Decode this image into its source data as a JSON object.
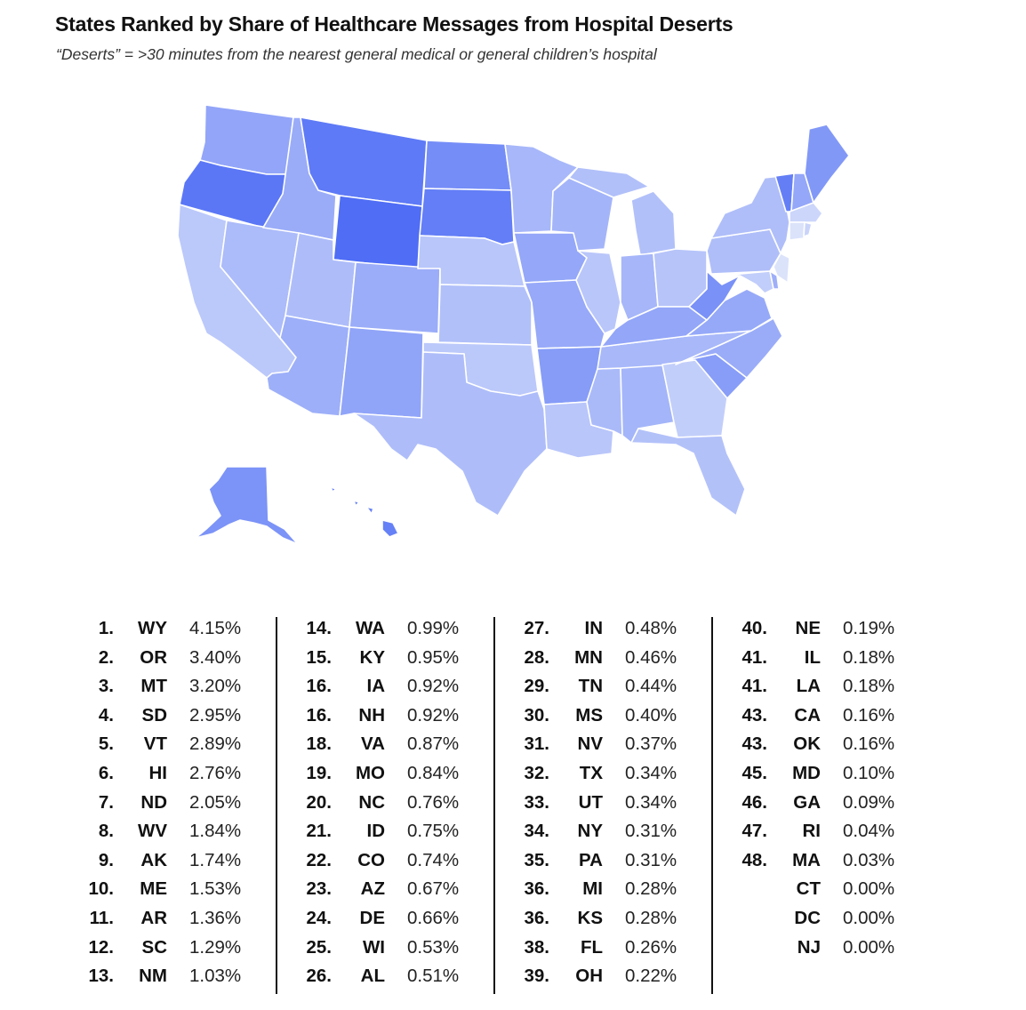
{
  "title": "States Ranked by Share of Healthcare Messages from Hospital Deserts",
  "subtitle": "“Deserts” = >30 minutes from the nearest general medical or general children’s hospital",
  "colors": {
    "low": "#dbe3fb",
    "high": "#4f6df5",
    "border": "#ffffff",
    "text": "#111111"
  },
  "chart_data": {
    "type": "table",
    "value_unit": "%",
    "columns": [
      [
        {
          "rank": "1.",
          "state": "WY",
          "value": "4.15%"
        },
        {
          "rank": "2.",
          "state": "OR",
          "value": "3.40%"
        },
        {
          "rank": "3.",
          "state": "MT",
          "value": "3.20%"
        },
        {
          "rank": "4.",
          "state": "SD",
          "value": "2.95%"
        },
        {
          "rank": "5.",
          "state": "VT",
          "value": "2.89%"
        },
        {
          "rank": "6.",
          "state": "HI",
          "value": "2.76%"
        },
        {
          "rank": "7.",
          "state": "ND",
          "value": "2.05%"
        },
        {
          "rank": "8.",
          "state": "WV",
          "value": "1.84%"
        },
        {
          "rank": "9.",
          "state": "AK",
          "value": "1.74%"
        },
        {
          "rank": "10.",
          "state": "ME",
          "value": "1.53%"
        },
        {
          "rank": "11.",
          "state": "AR",
          "value": "1.36%"
        },
        {
          "rank": "12.",
          "state": "SC",
          "value": "1.29%"
        },
        {
          "rank": "13.",
          "state": "NM",
          "value": "1.03%"
        }
      ],
      [
        {
          "rank": "14.",
          "state": "WA",
          "value": "0.99%"
        },
        {
          "rank": "15.",
          "state": "KY",
          "value": "0.95%"
        },
        {
          "rank": "16.",
          "state": "IA",
          "value": "0.92%"
        },
        {
          "rank": "16.",
          "state": "NH",
          "value": "0.92%"
        },
        {
          "rank": "18.",
          "state": "VA",
          "value": "0.87%"
        },
        {
          "rank": "19.",
          "state": "MO",
          "value": "0.84%"
        },
        {
          "rank": "20.",
          "state": "NC",
          "value": "0.76%"
        },
        {
          "rank": "21.",
          "state": "ID",
          "value": "0.75%"
        },
        {
          "rank": "22.",
          "state": "CO",
          "value": "0.74%"
        },
        {
          "rank": "23.",
          "state": "AZ",
          "value": "0.67%"
        },
        {
          "rank": "24.",
          "state": "DE",
          "value": "0.66%"
        },
        {
          "rank": "25.",
          "state": "WI",
          "value": "0.53%"
        },
        {
          "rank": "26.",
          "state": "AL",
          "value": "0.51%"
        }
      ],
      [
        {
          "rank": "27.",
          "state": "IN",
          "value": "0.48%"
        },
        {
          "rank": "28.",
          "state": "MN",
          "value": "0.46%"
        },
        {
          "rank": "29.",
          "state": "TN",
          "value": "0.44%"
        },
        {
          "rank": "30.",
          "state": "MS",
          "value": "0.40%"
        },
        {
          "rank": "31.",
          "state": "NV",
          "value": "0.37%"
        },
        {
          "rank": "32.",
          "state": "TX",
          "value": "0.34%"
        },
        {
          "rank": "33.",
          "state": "UT",
          "value": "0.34%"
        },
        {
          "rank": "34.",
          "state": "NY",
          "value": "0.31%"
        },
        {
          "rank": "35.",
          "state": "PA",
          "value": "0.31%"
        },
        {
          "rank": "36.",
          "state": "MI",
          "value": "0.28%"
        },
        {
          "rank": "36.",
          "state": "KS",
          "value": "0.28%"
        },
        {
          "rank": "38.",
          "state": "FL",
          "value": "0.26%"
        },
        {
          "rank": "39.",
          "state": "OH",
          "value": "0.22%"
        }
      ],
      [
        {
          "rank": "40.",
          "state": "NE",
          "value": "0.19%"
        },
        {
          "rank": "41.",
          "state": "IL",
          "value": "0.18%"
        },
        {
          "rank": "41.",
          "state": "LA",
          "value": "0.18%"
        },
        {
          "rank": "43.",
          "state": "CA",
          "value": "0.16%"
        },
        {
          "rank": "43.",
          "state": "OK",
          "value": "0.16%"
        },
        {
          "rank": "45.",
          "state": "MD",
          "value": "0.10%"
        },
        {
          "rank": "46.",
          "state": "GA",
          "value": "0.09%"
        },
        {
          "rank": "47.",
          "state": "RI",
          "value": "0.04%"
        },
        {
          "rank": "48.",
          "state": "MA",
          "value": "0.03%"
        },
        {
          "rank": "",
          "state": "CT",
          "value": "0.00%"
        },
        {
          "rank": "",
          "state": "DC",
          "value": "0.00%"
        },
        {
          "rank": "",
          "state": "NJ",
          "value": "0.00%"
        }
      ]
    ]
  }
}
